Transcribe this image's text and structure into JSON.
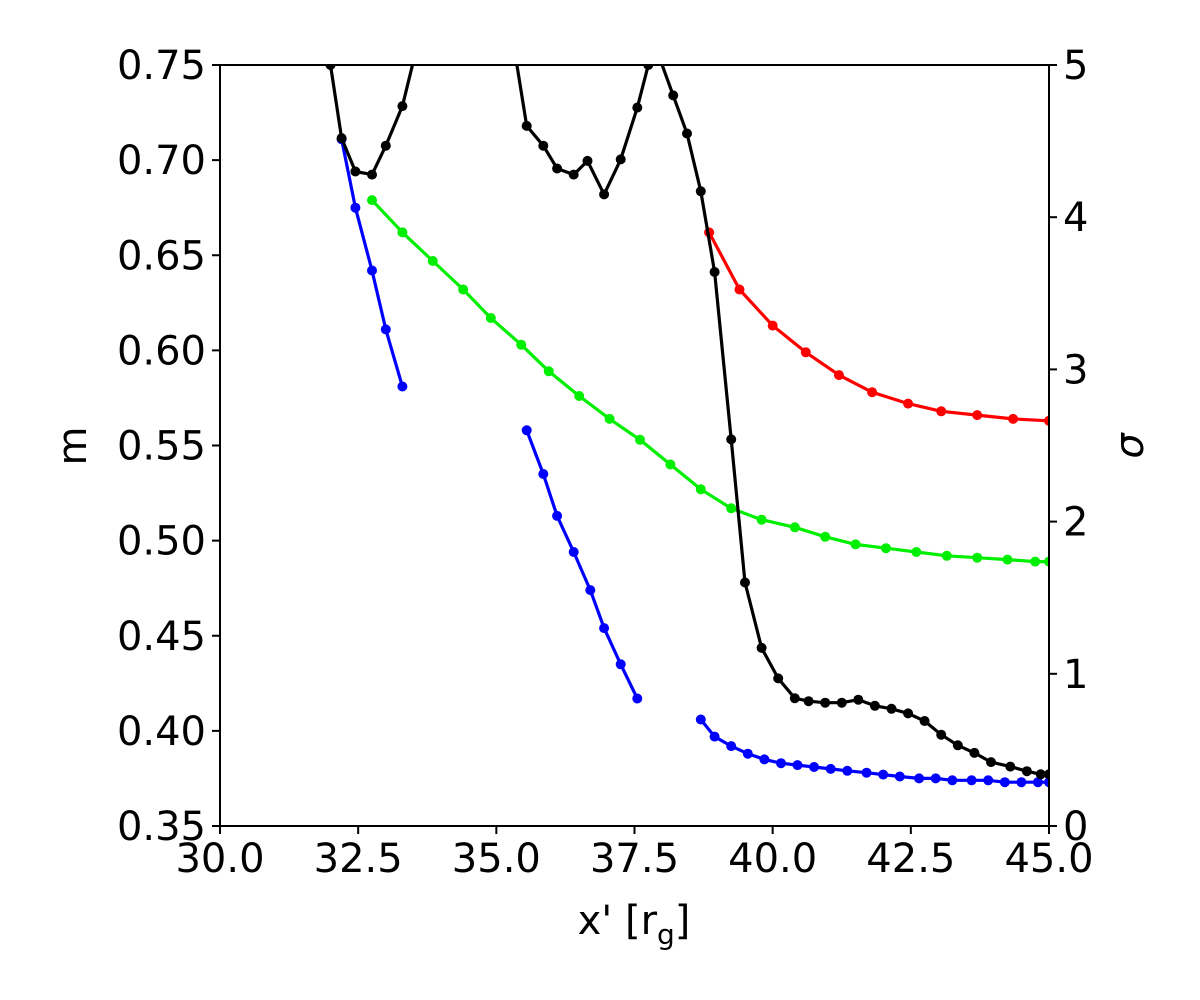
{
  "chart_data": {
    "type": "line",
    "xlabel_main": "x' [r",
    "xlabel_sub": "g",
    "xlabel_close": "]",
    "ylabel_left": "m",
    "ylabel_right": "σ",
    "xlim": [
      30.0,
      45.0
    ],
    "ylim_left": [
      0.35,
      0.75
    ],
    "ylim_right": [
      0,
      5
    ],
    "x_ticks": [
      "30.0",
      "32.5",
      "35.0",
      "37.5",
      "40.0",
      "42.5",
      "45.0"
    ],
    "y_left_ticks": [
      "0.35",
      "0.40",
      "0.45",
      "0.50",
      "0.55",
      "0.60",
      "0.65",
      "0.70",
      "0.75"
    ],
    "y_right_ticks": [
      "0",
      "1",
      "2",
      "3",
      "4",
      "5"
    ],
    "grid": false,
    "series": [
      {
        "color": "#0000ff",
        "axis": "left",
        "segments": [
          {
            "x": [
              32.2,
              32.45,
              32.75,
              33.0,
              33.3
            ],
            "y": [
              0.711,
              0.675,
              0.642,
              0.611,
              0.581
            ]
          },
          {
            "x": [
              35.55,
              35.85,
              36.1,
              36.4,
              36.7,
              36.95,
              37.25,
              37.55
            ],
            "y": [
              0.558,
              0.535,
              0.513,
              0.494,
              0.474,
              0.454,
              0.435,
              0.417
            ]
          },
          {
            "x": [
              38.7,
              38.95,
              39.25,
              39.55,
              39.85,
              40.15,
              40.45,
              40.75,
              41.05,
              41.35,
              41.7,
              42.0,
              42.3,
              42.65,
              42.95,
              43.25,
              43.6,
              43.9,
              44.2,
              44.5,
              44.8,
              45.0
            ],
            "y": [
              0.406,
              0.397,
              0.392,
              0.388,
              0.385,
              0.383,
              0.382,
              0.381,
              0.38,
              0.379,
              0.378,
              0.377,
              0.376,
              0.375,
              0.375,
              0.374,
              0.374,
              0.374,
              0.373,
              0.373,
              0.373,
              0.373
            ]
          }
        ]
      },
      {
        "color": "#00ee00",
        "axis": "left",
        "segments": [
          {
            "x": [
              32.75,
              33.3,
              33.85,
              34.4,
              34.9,
              35.45,
              35.95,
              36.5,
              37.05,
              37.6,
              38.15,
              38.7,
              39.25,
              39.8,
              40.4,
              40.95,
              41.5,
              42.05,
              42.6,
              43.15,
              43.7,
              44.25,
              44.75,
              45.0
            ],
            "y": [
              0.679,
              0.662,
              0.647,
              0.632,
              0.617,
              0.603,
              0.589,
              0.576,
              0.564,
              0.553,
              0.54,
              0.527,
              0.517,
              0.511,
              0.507,
              0.502,
              0.498,
              0.496,
              0.494,
              0.492,
              0.491,
              0.49,
              0.489,
              0.489
            ]
          }
        ]
      },
      {
        "color": "#ff0000",
        "axis": "left",
        "segments": [
          {
            "x": [
              38.85,
              39.4,
              40.0,
              40.6,
              41.2,
              41.8,
              42.45,
              43.05,
              43.7,
              44.35,
              45.0
            ],
            "y": [
              0.662,
              0.632,
              0.613,
              0.599,
              0.587,
              0.578,
              0.572,
              0.568,
              0.566,
              0.564,
              0.563
            ]
          }
        ]
      },
      {
        "color": "#000000",
        "axis": "right",
        "segments": [
          {
            "x": [
              31.8,
              32.0,
              32.2,
              32.45,
              32.75,
              33.0,
              33.3,
              33.55,
              33.75
            ],
            "y": [
              5.3,
              5.0,
              4.52,
              4.3,
              4.28,
              4.47,
              4.73,
              5.1,
              5.5
            ]
          },
          {
            "x": [
              35.2,
              35.35,
              35.55,
              35.85,
              36.1,
              36.4,
              36.65,
              36.95,
              37.25,
              37.55,
              37.75,
              37.95,
              38.2,
              38.45,
              38.7,
              38.95,
              39.25,
              39.5,
              39.8,
              40.1,
              40.4,
              40.65,
              40.95,
              41.25,
              41.55,
              41.85,
              42.15,
              42.45,
              42.75,
              43.05,
              43.35,
              43.65,
              43.95,
              44.3,
              44.6,
              44.85,
              45.0
            ],
            "y": [
              5.4,
              5.05,
              4.6,
              4.47,
              4.32,
              4.28,
              4.37,
              4.15,
              4.38,
              4.72,
              5.0,
              5.05,
              4.8,
              4.55,
              4.17,
              3.64,
              2.54,
              1.6,
              1.17,
              0.97,
              0.84,
              0.82,
              0.81,
              0.81,
              0.83,
              0.79,
              0.77,
              0.74,
              0.69,
              0.6,
              0.53,
              0.48,
              0.42,
              0.39,
              0.36,
              0.34,
              0.34
            ]
          }
        ]
      }
    ]
  }
}
